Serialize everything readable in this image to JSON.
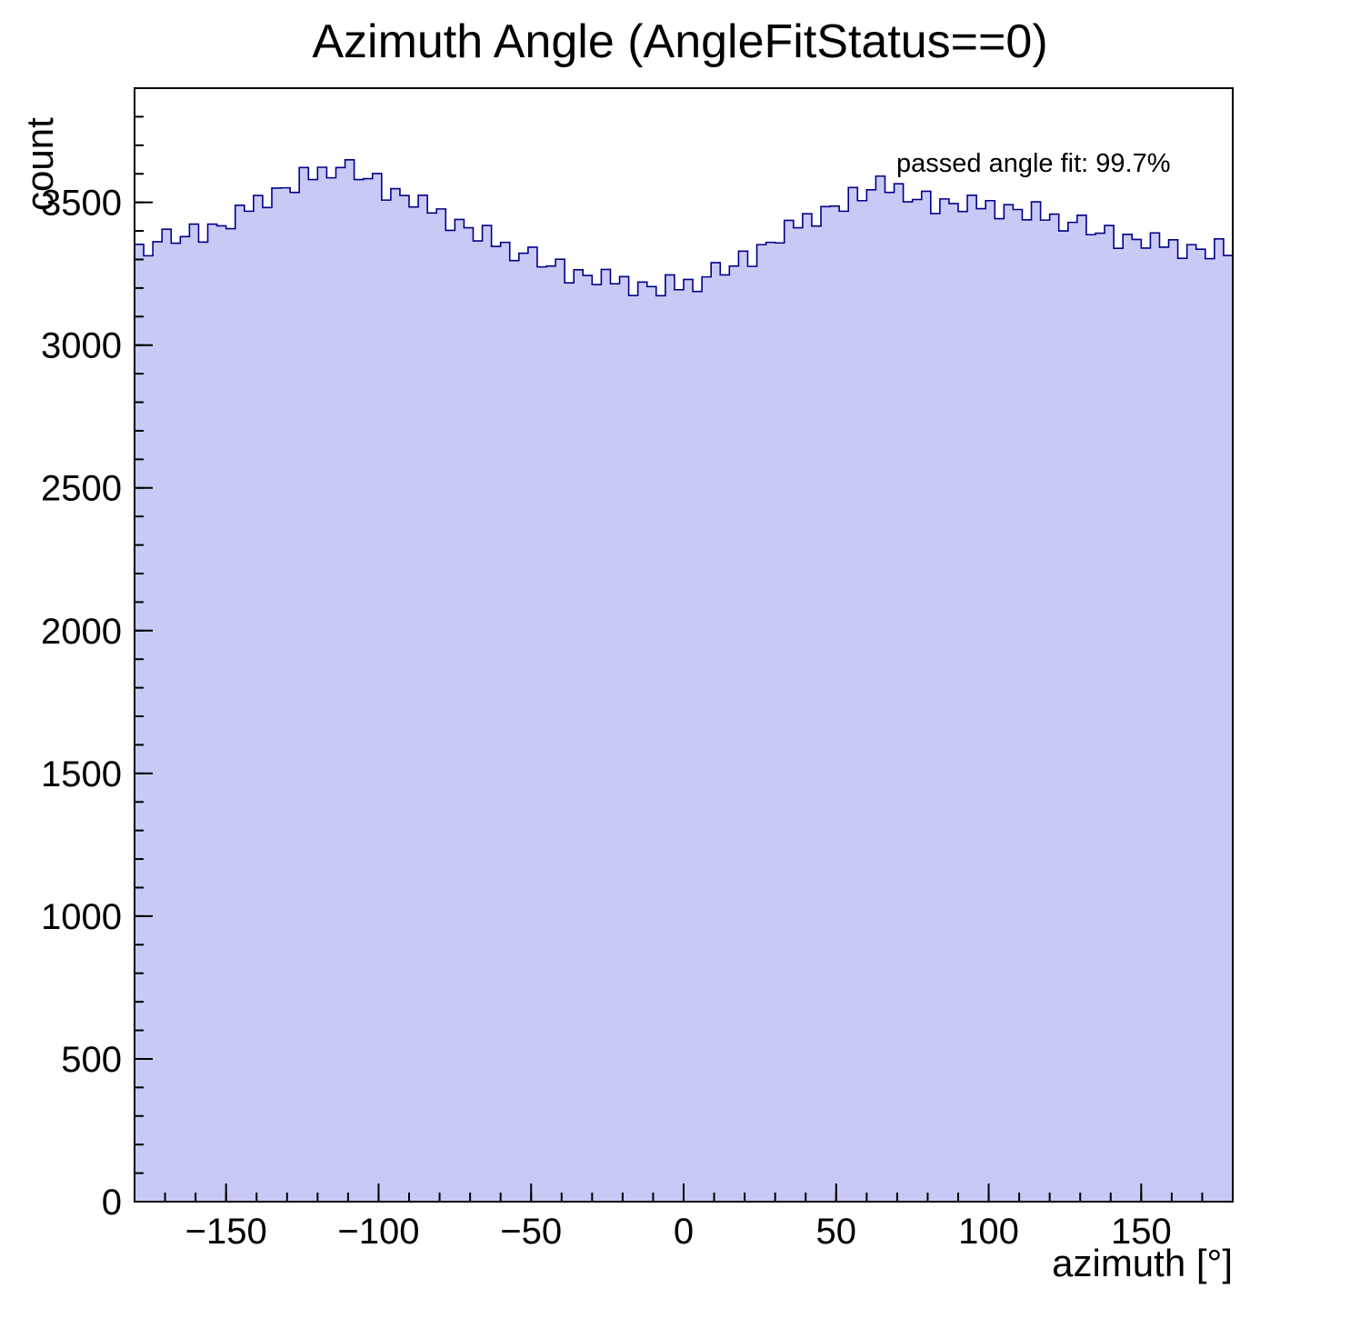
{
  "title": "Azimuth Angle (AngleFitStatus==0)",
  "annotation": "passed angle fit: 99.7%",
  "chart_data": {
    "type": "bar",
    "subtype": "histogram-step-filled",
    "title": "Azimuth Angle (AngleFitStatus==0)",
    "xlabel": "azimuth [°]",
    "ylabel": "count",
    "xlim": [
      -180,
      180
    ],
    "ylim": [
      0,
      3900
    ],
    "bin_start": -180,
    "bin_width": 3,
    "x_major_ticks": [
      -150,
      -100,
      -50,
      0,
      50,
      100,
      150
    ],
    "x_minor_step": 10,
    "y_major_ticks": [
      0,
      500,
      1000,
      1500,
      2000,
      2500,
      3000,
      3500
    ],
    "y_minor_step": 100,
    "legend_position": "none",
    "grid": false,
    "fill_color": "#c9c9f5",
    "line_color": "#00008b",
    "frame_color": "#000000",
    "annotation": "passed angle fit: 99.7%",
    "values": [
      3353,
      3313,
      3362,
      3406,
      3357,
      3380,
      3424,
      3361,
      3424,
      3418,
      3408,
      3490,
      3469,
      3524,
      3482,
      3550,
      3551,
      3535,
      3622,
      3580,
      3623,
      3586,
      3622,
      3649,
      3580,
      3583,
      3601,
      3508,
      3548,
      3524,
      3484,
      3525,
      3463,
      3477,
      3402,
      3440,
      3411,
      3365,
      3419,
      3346,
      3360,
      3296,
      3322,
      3343,
      3274,
      3277,
      3301,
      3218,
      3264,
      3244,
      3212,
      3265,
      3215,
      3240,
      3174,
      3221,
      3205,
      3173,
      3246,
      3194,
      3230,
      3188,
      3239,
      3289,
      3246,
      3277,
      3329,
      3276,
      3352,
      3360,
      3358,
      3437,
      3411,
      3460,
      3417,
      3485,
      3487,
      3469,
      3552,
      3506,
      3544,
      3592,
      3535,
      3565,
      3502,
      3510,
      3539,
      3461,
      3512,
      3496,
      3468,
      3525,
      3478,
      3506,
      3443,
      3492,
      3475,
      3439,
      3502,
      3438,
      3459,
      3400,
      3430,
      3455,
      3387,
      3392,
      3419,
      3339,
      3388,
      3370,
      3340,
      3393,
      3343,
      3369,
      3304,
      3352,
      3336,
      3303,
      3372,
      3314
    ]
  }
}
